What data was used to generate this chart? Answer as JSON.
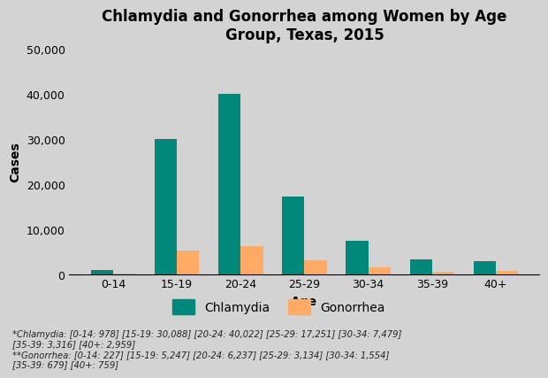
{
  "title": "Chlamydia and Gonorrhea among Women by Age\nGroup, Texas, 2015",
  "xlabel": "Age",
  "ylabel": "Cases",
  "categories": [
    "0-14",
    "15-19",
    "20-24",
    "25-29",
    "30-34",
    "35-39",
    "40+"
  ],
  "chlamydia": [
    978,
    30088,
    40022,
    17251,
    7479,
    3316,
    2959
  ],
  "gonorrhea": [
    227,
    5247,
    6237,
    3134,
    1554,
    679,
    759
  ],
  "chlamydia_color": "#00897B",
  "gonorrhea_color": "#FFAB66",
  "background_color": "#D3D3D3",
  "ylim": [
    0,
    50000
  ],
  "yticks": [
    0,
    10000,
    20000,
    30000,
    40000,
    50000
  ],
  "footnote1": "*Chlamydia: [0-14: 978] [15-19: 30,088] [20-24: 40,022] [25-29: 17,251] [30-34: 7,479]",
  "footnote2": "[35-39: 3,316] [40+: 2,959]",
  "footnote3": "**Gonorrhea: [0-14: 227] [15-19: 5,247] [20-24: 6,237] [25-29: 3,134] [30-34: 1,554]",
  "footnote4": "[35-39: 679] [40+: 759]"
}
